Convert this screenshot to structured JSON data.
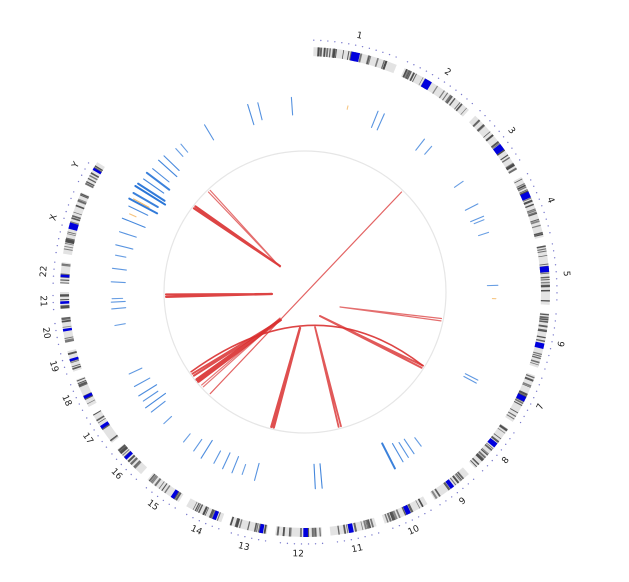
{
  "chart_data": {
    "type": "circos",
    "title": "",
    "center": [
      305,
      292
    ],
    "colors": {
      "ideogram_band_light": "#e3e3e3",
      "ideogram_band_dark": "#4a4a4a",
      "centromere": "#0000dd",
      "tick_dots": "#7a7acc",
      "track_blue": "#1f6fd6",
      "track_orange": "#f0a030",
      "link_red": "#d93030",
      "inner_ring": "#e6e6e6"
    },
    "radii": {
      "ideogram_outer": 245,
      "ideogram_inner": 236,
      "ticks": 252,
      "labels": 262,
      "track_outer": 200,
      "track_inner": 165,
      "link_ring": 141
    },
    "chromosomes": [
      {
        "name": "1",
        "start": 2,
        "end": 22,
        "centro": 0.45
      },
      {
        "name": "2",
        "start": 24,
        "end": 42,
        "centro": 0.3
      },
      {
        "name": "3",
        "start": 44,
        "end": 60,
        "centro": 0.55
      },
      {
        "name": "4",
        "start": 62,
        "end": 77,
        "centro": 0.25
      },
      {
        "name": "5",
        "start": 79,
        "end": 93,
        "centro": 0.35
      },
      {
        "name": "6",
        "start": 95,
        "end": 108,
        "centro": 0.55
      },
      {
        "name": "7",
        "start": 110,
        "end": 122,
        "centro": 0.45
      },
      {
        "name": "8",
        "start": 124,
        "end": 136,
        "centro": 0.35
      },
      {
        "name": "9",
        "start": 138,
        "end": 148,
        "centro": 0.45
      },
      {
        "name": "10",
        "start": 150,
        "end": 161,
        "centro": 0.4
      },
      {
        "name": "11",
        "start": 163,
        "end": 174,
        "centro": 0.5
      },
      {
        "name": "12",
        "start": 176,
        "end": 187,
        "centro": 0.3
      },
      {
        "name": "13",
        "start": 189,
        "end": 198,
        "centro": 0.1
      },
      {
        "name": "14",
        "start": 200,
        "end": 209,
        "centro": 0.15
      },
      {
        "name": "15",
        "start": 211,
        "end": 220,
        "centro": 0.15
      },
      {
        "name": "16",
        "start": 222,
        "end": 230,
        "centro": 0.6
      },
      {
        "name": "17",
        "start": 232,
        "end": 240,
        "centro": 0.5
      },
      {
        "name": "18",
        "start": 242,
        "end": 249,
        "centro": 0.3
      },
      {
        "name": "19",
        "start": 251,
        "end": 256,
        "centro": 0.5
      },
      {
        "name": "20",
        "start": 258,
        "end": 264,
        "centro": 0.45
      },
      {
        "name": "21",
        "start": 266,
        "end": 270,
        "centro": 0.3
      },
      {
        "name": "22",
        "start": 272,
        "end": 277,
        "centro": 0.3
      },
      {
        "name": "X",
        "start": 279,
        "end": 294,
        "centro": 0.4
      },
      {
        "name": "Y",
        "start": 296,
        "end": 302,
        "centro": 0.65
      }
    ],
    "track_features": [
      {
        "angle": 288,
        "color": "blue",
        "len": 0.5
      },
      {
        "angle": 292,
        "color": "blue",
        "len": 0.7
      },
      {
        "angle": 296,
        "color": "blue",
        "len": 0.6
      },
      {
        "angle": 298,
        "color": "blue",
        "len": 0.9
      },
      {
        "angle": 300,
        "color": "blue",
        "len": 0.8
      },
      {
        "angle": 302,
        "color": "blue",
        "len": 1.0
      },
      {
        "angle": 303,
        "color": "blue",
        "len": 0.9
      },
      {
        "angle": 305,
        "color": "blue",
        "len": 0.7
      },
      {
        "angle": 307,
        "color": "blue",
        "len": 0.8
      },
      {
        "angle": 309,
        "color": "blue",
        "len": 0.6
      },
      {
        "angle": 312,
        "color": "blue",
        "len": 0.7
      },
      {
        "angle": 314,
        "color": "blue",
        "len": 0.6
      },
      {
        "angle": 318,
        "color": "blue",
        "len": 0.3
      },
      {
        "angle": 320,
        "color": "blue",
        "len": 0.3
      },
      {
        "angle": 329,
        "color": "blue",
        "len": 0.5
      },
      {
        "angle": 343,
        "color": "blue",
        "len": 0.6
      },
      {
        "angle": 346,
        "color": "blue",
        "len": 0.5
      },
      {
        "angle": 356,
        "color": "blue",
        "len": 0.5
      },
      {
        "angle": 13,
        "color": "orange",
        "len": 0.1
      },
      {
        "angle": 22,
        "color": "blue",
        "len": 0.5
      },
      {
        "angle": 24,
        "color": "blue",
        "len": 0.5
      },
      {
        "angle": 38,
        "color": "blue",
        "len": 0.4
      },
      {
        "angle": 41,
        "color": "blue",
        "len": 0.3
      },
      {
        "angle": 55,
        "color": "blue",
        "len": 0.3
      },
      {
        "angle": 63,
        "color": "blue",
        "len": 0.4
      },
      {
        "angle": 67,
        "color": "blue",
        "len": 0.4
      },
      {
        "angle": 68,
        "color": "blue",
        "len": 0.3
      },
      {
        "angle": 72,
        "color": "blue",
        "len": 0.3
      },
      {
        "angle": 88,
        "color": "blue",
        "len": 0.3
      },
      {
        "angle": 92,
        "color": "orange",
        "len": 0.1
      },
      {
        "angle": 117,
        "color": "blue",
        "len": 0.4
      },
      {
        "angle": 118,
        "color": "blue",
        "len": 0.4
      },
      {
        "angle": 143,
        "color": "blue",
        "len": 0.3
      },
      {
        "angle": 146,
        "color": "blue",
        "len": 0.5
      },
      {
        "angle": 148,
        "color": "blue",
        "len": 0.5
      },
      {
        "angle": 150,
        "color": "blue",
        "len": 0.6
      },
      {
        "angle": 153,
        "color": "blue",
        "len": 0.8
      },
      {
        "angle": 175,
        "color": "blue",
        "len": 0.7
      },
      {
        "angle": 177,
        "color": "blue",
        "len": 0.7
      },
      {
        "angle": 195,
        "color": "blue",
        "len": 0.5
      },
      {
        "angle": 199,
        "color": "blue",
        "len": 0.3
      },
      {
        "angle": 202,
        "color": "blue",
        "len": 0.5
      },
      {
        "angle": 205,
        "color": "blue",
        "len": 0.5
      },
      {
        "angle": 208,
        "color": "blue",
        "len": 0.4
      },
      {
        "angle": 212,
        "color": "blue",
        "len": 0.6
      },
      {
        "angle": 215,
        "color": "blue",
        "len": 0.4
      },
      {
        "angle": 219,
        "color": "blue",
        "len": 0.3
      },
      {
        "angle": 227,
        "color": "blue",
        "len": 0.3
      },
      {
        "angle": 232,
        "color": "blue",
        "len": 0.5
      },
      {
        "angle": 234,
        "color": "blue",
        "len": 0.7
      },
      {
        "angle": 236,
        "color": "blue",
        "len": 0.5
      },
      {
        "angle": 238,
        "color": "blue",
        "len": 0.6
      },
      {
        "angle": 241,
        "color": "blue",
        "len": 0.5
      },
      {
        "angle": 245,
        "color": "blue",
        "len": 0.4
      },
      {
        "angle": 260,
        "color": "blue",
        "len": 0.3
      },
      {
        "angle": 265,
        "color": "blue",
        "len": 0.4
      },
      {
        "angle": 267,
        "color": "blue",
        "len": 0.4
      },
      {
        "angle": 268,
        "color": "blue",
        "len": 0.3
      },
      {
        "angle": 273,
        "color": "blue",
        "len": 0.4
      },
      {
        "angle": 277,
        "color": "blue",
        "len": 0.4
      },
      {
        "angle": 281,
        "color": "blue",
        "len": 0.3
      },
      {
        "angle": 284,
        "color": "blue",
        "len": 0.5
      },
      {
        "angle": 298.5,
        "color": "orange",
        "len": 0.5
      },
      {
        "angle": 294,
        "color": "orange",
        "len": 0.2
      }
    ],
    "links": [
      {
        "from": 316,
        "to": 317,
        "tip": [
          280,
          267
        ],
        "width": 1.2,
        "opacity": 0.7
      },
      {
        "from": 307,
        "to": 308,
        "tip": [
          280,
          266
        ],
        "width": 2.2,
        "opacity": 0.9
      },
      {
        "from": 44,
        "to": 223,
        "tip": null,
        "width": 1.2,
        "opacity": 0.75
      },
      {
        "from": 268,
        "to": 269,
        "tip": [
          272,
          294
        ],
        "width": 2.2,
        "opacity": 0.9
      },
      {
        "from": 101,
        "to": 102,
        "tip": [
          340,
          307
        ],
        "width": 1.2,
        "opacity": 0.7
      },
      {
        "from": 122,
        "to": 123,
        "tip": [
          320,
          316
        ],
        "width": 2.0,
        "opacity": 0.8
      },
      {
        "from": 227,
        "to": 228,
        "tip": [
          280,
          318
        ],
        "width": 1.2,
        "opacity": 0.65
      },
      {
        "from": 230,
        "to": 231,
        "tip": [
          280,
          320
        ],
        "width": 3.0,
        "opacity": 0.9
      },
      {
        "from": 233,
        "to": 234,
        "tip": [
          281,
          320
        ],
        "width": 2.0,
        "opacity": 0.85
      },
      {
        "from": 193,
        "to": 194,
        "tip": [
          300,
          328
        ],
        "width": 2.4,
        "opacity": 0.85
      },
      {
        "from": 165,
        "to": 166,
        "tip": [
          315,
          327
        ],
        "width": 1.8,
        "opacity": 0.8
      },
      {
        "from": 235,
        "to": 122,
        "tip": [
          315,
          312
        ],
        "width": 1.6,
        "opacity": 0.9
      }
    ]
  }
}
